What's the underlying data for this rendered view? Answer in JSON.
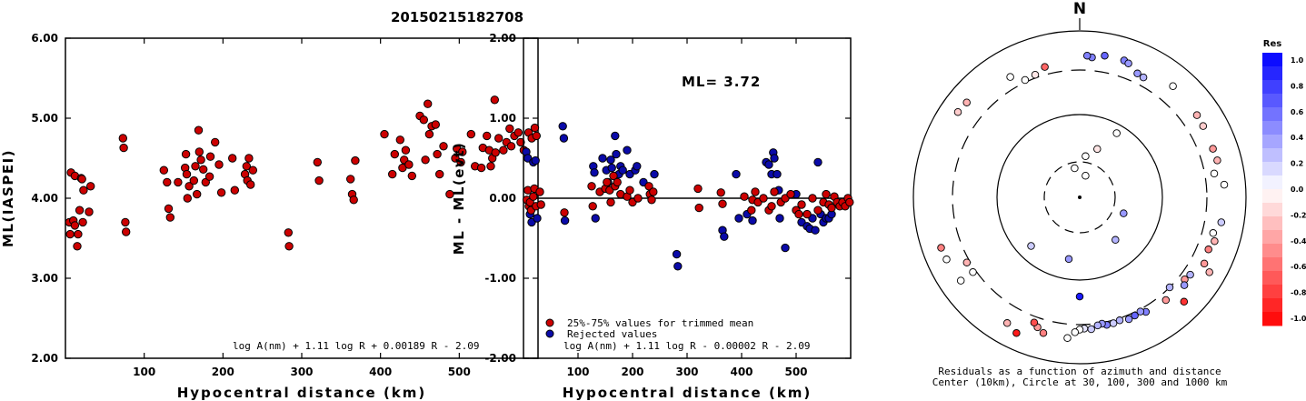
{
  "title": "20150215182708",
  "colors": {
    "red": "#cc0000",
    "blue": "#0a0aa8",
    "outline": "#000000"
  },
  "chart_data": [
    {
      "type": "scatter",
      "xlabel": "Hypocentral distance (km)",
      "ylabel": "ML(IASPEI)",
      "xlim": [
        0,
        600
      ],
      "ylim": [
        2.0,
        6.0
      ],
      "xticks": [
        "100",
        "200",
        "300",
        "400",
        "500"
      ],
      "yticks": [
        "2.00",
        "3.00",
        "4.00",
        "5.00",
        "6.00"
      ],
      "formula": "log A(nm) + 1.11 log R + 0.00189 R - 2.09",
      "points": [
        [
          5,
          3.7
        ],
        [
          6,
          3.55
        ],
        [
          7,
          4.32
        ],
        [
          10,
          3.72
        ],
        [
          12,
          3.66
        ],
        [
          12,
          4.28
        ],
        [
          15,
          3.4
        ],
        [
          16,
          3.55
        ],
        [
          18,
          3.85
        ],
        [
          20,
          4.25
        ],
        [
          21,
          4.24
        ],
        [
          22,
          3.7
        ],
        [
          23,
          4.1
        ],
        [
          30,
          3.83
        ],
        [
          32,
          4.15
        ],
        [
          73,
          4.75
        ],
        [
          74,
          4.63
        ],
        [
          76,
          3.7
        ],
        [
          77,
          3.58
        ],
        [
          125,
          4.35
        ],
        [
          129,
          4.2
        ],
        [
          131,
          3.87
        ],
        [
          133,
          3.76
        ],
        [
          143,
          4.2
        ],
        [
          152,
          4.38
        ],
        [
          153,
          4.55
        ],
        [
          154,
          4.3
        ],
        [
          155,
          4.0
        ],
        [
          157,
          4.15
        ],
        [
          163,
          4.22
        ],
        [
          165,
          4.4
        ],
        [
          167,
          4.05
        ],
        [
          169,
          4.85
        ],
        [
          170,
          4.58
        ],
        [
          172,
          4.48
        ],
        [
          175,
          4.36
        ],
        [
          178,
          4.2
        ],
        [
          183,
          4.27
        ],
        [
          184,
          4.52
        ],
        [
          190,
          4.7
        ],
        [
          195,
          4.42
        ],
        [
          198,
          4.07
        ],
        [
          212,
          4.5
        ],
        [
          215,
          4.1
        ],
        [
          228,
          4.3
        ],
        [
          230,
          4.4
        ],
        [
          231,
          4.22
        ],
        [
          233,
          4.5
        ],
        [
          235,
          4.17
        ],
        [
          238,
          4.35
        ],
        [
          283,
          3.57
        ],
        [
          284,
          3.4
        ],
        [
          320,
          4.45
        ],
        [
          322,
          4.22
        ],
        [
          362,
          4.24
        ],
        [
          364,
          4.05
        ],
        [
          366,
          3.98
        ],
        [
          368,
          4.47
        ],
        [
          405,
          4.8
        ],
        [
          415,
          4.3
        ],
        [
          418,
          4.55
        ],
        [
          425,
          4.73
        ],
        [
          428,
          4.38
        ],
        [
          430,
          4.48
        ],
        [
          432,
          4.6
        ],
        [
          436,
          4.42
        ],
        [
          440,
          4.28
        ],
        [
          450,
          5.03
        ],
        [
          455,
          4.98
        ],
        [
          457,
          4.48
        ],
        [
          460,
          5.18
        ],
        [
          462,
          4.8
        ],
        [
          465,
          4.9
        ],
        [
          470,
          4.92
        ],
        [
          472,
          4.55
        ],
        [
          475,
          4.3
        ],
        [
          480,
          4.65
        ],
        [
          488,
          4.05
        ],
        [
          495,
          4.5
        ],
        [
          497,
          4.62
        ],
        [
          502,
          4.45
        ],
        [
          504,
          4.58
        ],
        [
          515,
          4.8
        ],
        [
          520,
          4.4
        ],
        [
          528,
          4.38
        ],
        [
          530,
          4.63
        ],
        [
          535,
          4.78
        ],
        [
          538,
          4.6
        ],
        [
          540,
          4.4
        ],
        [
          542,
          4.5
        ],
        [
          545,
          5.23
        ],
        [
          546,
          4.57
        ],
        [
          550,
          4.75
        ],
        [
          556,
          4.6
        ],
        [
          560,
          4.7
        ],
        [
          564,
          4.87
        ],
        [
          566,
          4.65
        ],
        [
          570,
          4.78
        ],
        [
          575,
          4.82
        ],
        [
          578,
          4.7
        ],
        [
          582,
          4.6
        ],
        [
          588,
          4.82
        ],
        [
          592,
          4.75
        ],
        [
          596,
          4.88
        ],
        [
          598,
          4.78
        ]
      ]
    },
    {
      "type": "scatter",
      "xlabel": "Hypocentral distance (km)",
      "ylabel": "ML - ML(evt)",
      "xlim": [
        0,
        600
      ],
      "ylim": [
        -2.0,
        2.0
      ],
      "xticks": [
        "100",
        "200",
        "300",
        "400",
        "500"
      ],
      "yticks": [
        "-2.00",
        "-1.00",
        "0.00",
        "1.00",
        "2.00"
      ],
      "annotation": "ML= 3.72",
      "formula": "log A(nm) + 1.11 log R - 0.00002 R - 2.09",
      "legend": [
        "25%-75% values for trimmed mean",
        "Rejected values"
      ],
      "series": [
        {
          "name": "25%-75% values for trimmed mean",
          "points": [
            [
              6,
              -0.02
            ],
            [
              8,
              0.1
            ],
            [
              10,
              -0.1
            ],
            [
              12,
              -0.05
            ],
            [
              14,
              -0.15
            ],
            [
              18,
              0.02
            ],
            [
              20,
              0.12
            ],
            [
              23,
              -0.1
            ],
            [
              30,
              0.08
            ],
            [
              32,
              -0.08
            ],
            [
              75,
              -0.18
            ],
            [
              125,
              0.15
            ],
            [
              127,
              -0.1
            ],
            [
              140,
              0.08
            ],
            [
              150,
              0.12
            ],
            [
              153,
              0.2
            ],
            [
              158,
              0.1
            ],
            [
              160,
              -0.05
            ],
            [
              165,
              0.28
            ],
            [
              168,
              0.15
            ],
            [
              172,
              0.2
            ],
            [
              178,
              0.05
            ],
            [
              190,
              0.02
            ],
            [
              195,
              0.1
            ],
            [
              200,
              -0.05
            ],
            [
              210,
              0.0
            ],
            [
              230,
              0.15
            ],
            [
              232,
              0.05
            ],
            [
              235,
              -0.02
            ],
            [
              238,
              0.08
            ],
            [
              320,
              0.12
            ],
            [
              322,
              -0.12
            ],
            [
              362,
              0.07
            ],
            [
              365,
              -0.07
            ],
            [
              405,
              0.02
            ],
            [
              418,
              -0.15
            ],
            [
              420,
              -0.02
            ],
            [
              425,
              0.08
            ],
            [
              430,
              -0.05
            ],
            [
              440,
              0.0
            ],
            [
              450,
              -0.15
            ],
            [
              455,
              -0.1
            ],
            [
              460,
              0.08
            ],
            [
              472,
              -0.05
            ],
            [
              480,
              0.0
            ],
            [
              490,
              0.05
            ],
            [
              500,
              -0.15
            ],
            [
              505,
              -0.2
            ],
            [
              510,
              -0.08
            ],
            [
              520,
              -0.2
            ],
            [
              530,
              0.0
            ],
            [
              540,
              -0.15
            ],
            [
              550,
              -0.05
            ],
            [
              555,
              0.05
            ],
            [
              560,
              -0.08
            ],
            [
              565,
              -0.12
            ],
            [
              570,
              0.02
            ],
            [
              575,
              -0.05
            ],
            [
              580,
              -0.1
            ],
            [
              585,
              -0.05
            ],
            [
              590,
              -0.1
            ],
            [
              595,
              0.0
            ],
            [
              598,
              -0.05
            ]
          ]
        },
        {
          "name": "Rejected values",
          "points": [
            [
              5,
              0.58
            ],
            [
              8,
              0.5
            ],
            [
              12,
              -0.2
            ],
            [
              15,
              -0.3
            ],
            [
              18,
              0.45
            ],
            [
              22,
              0.47
            ],
            [
              25,
              -0.25
            ],
            [
              72,
              0.9
            ],
            [
              74,
              0.75
            ],
            [
              76,
              -0.28
            ],
            [
              128,
              0.4
            ],
            [
              130,
              0.32
            ],
            [
              132,
              -0.25
            ],
            [
              145,
              0.5
            ],
            [
              152,
              0.35
            ],
            [
              155,
              0.2
            ],
            [
              160,
              0.48
            ],
            [
              162,
              0.38
            ],
            [
              168,
              0.78
            ],
            [
              170,
              0.55
            ],
            [
              175,
              0.3
            ],
            [
              178,
              0.4
            ],
            [
              182,
              0.35
            ],
            [
              190,
              0.6
            ],
            [
              195,
              0.3
            ],
            [
              205,
              0.35
            ],
            [
              208,
              0.4
            ],
            [
              220,
              0.2
            ],
            [
              240,
              0.3
            ],
            [
              281,
              -0.7
            ],
            [
              283,
              -0.85
            ],
            [
              365,
              -0.4
            ],
            [
              368,
              -0.48
            ],
            [
              390,
              0.3
            ],
            [
              395,
              -0.25
            ],
            [
              410,
              -0.2
            ],
            [
              420,
              -0.28
            ],
            [
              445,
              0.45
            ],
            [
              450,
              0.42
            ],
            [
              455,
              0.3
            ],
            [
              458,
              0.57
            ],
            [
              460,
              0.5
            ],
            [
              465,
              0.3
            ],
            [
              468,
              0.1
            ],
            [
              470,
              -0.25
            ],
            [
              480,
              -0.62
            ],
            [
              500,
              0.05
            ],
            [
              510,
              -0.3
            ],
            [
              520,
              -0.35
            ],
            [
              525,
              -0.38
            ],
            [
              530,
              -0.25
            ],
            [
              535,
              -0.4
            ],
            [
              540,
              0.45
            ],
            [
              545,
              -0.2
            ],
            [
              550,
              -0.3
            ],
            [
              555,
              -0.25
            ],
            [
              560,
              -0.25
            ],
            [
              565,
              -0.2
            ]
          ]
        }
      ]
    },
    {
      "type": "scatter",
      "subtype": "polar",
      "north_label": "N",
      "caption_line1": "Residuals as a function of azimuth and distance",
      "caption_line2": "Center (10km), Circle at 30, 100, 300 and 1000 km",
      "colorbar_title": "Res",
      "colorbar_ticks": [
        "1.0",
        "0.8",
        "0.6",
        "0.4",
        "0.2",
        "0.0",
        "-0.2",
        "-0.4",
        "-0.6",
        "-0.8",
        "-1.0"
      ],
      "rings_km": [
        30,
        100,
        300,
        1000
      ],
      "points_az_dist_res": [
        [
          15,
          20,
          0.0
        ],
        [
          8,
          35,
          0.0
        ],
        [
          350,
          25,
          0.0
        ],
        [
          20,
          45,
          -0.1
        ],
        [
          30,
          80,
          0.0
        ],
        [
          110,
          40,
          0.4
        ],
        [
          140,
          50,
          0.3
        ],
        [
          190,
          60,
          0.4
        ],
        [
          225,
          70,
          0.2
        ],
        [
          180,
          150,
          0.9
        ],
        [
          5,
          450,
          0.5
        ],
        [
          3,
          470,
          0.5
        ],
        [
          10,
          500,
          0.6
        ],
        [
          18,
          500,
          0.5
        ],
        [
          20,
          480,
          0.4
        ],
        [
          25,
          400,
          0.4
        ],
        [
          28,
          390,
          0.3
        ],
        [
          345,
          380,
          -0.6
        ],
        [
          330,
          430,
          0.0
        ],
        [
          335,
          320,
          0.0
        ],
        [
          340,
          330,
          -0.1
        ],
        [
          310,
          560,
          -0.3
        ],
        [
          305,
          580,
          -0.2
        ],
        [
          40,
          520,
          0.0
        ],
        [
          55,
          490,
          -0.3
        ],
        [
          60,
          480,
          -0.2
        ],
        [
          70,
          470,
          -0.4
        ],
        [
          75,
          480,
          -0.3
        ],
        [
          80,
          400,
          0.0
        ],
        [
          85,
          520,
          0.0
        ],
        [
          100,
          500,
          0.2
        ],
        [
          105,
          420,
          0.0
        ],
        [
          108,
          470,
          -0.3
        ],
        [
          112,
          430,
          -0.5
        ],
        [
          118,
          460,
          -0.4
        ],
        [
          125,
          380,
          0.3
        ],
        [
          128,
          360,
          -0.4
        ],
        [
          130,
          400,
          0.4
        ],
        [
          135,
          300,
          0.3
        ],
        [
          140,
          370,
          -0.4
        ],
        [
          150,
          350,
          0.5
        ],
        [
          152,
          320,
          0.4
        ],
        [
          155,
          330,
          0.6
        ],
        [
          158,
          340,
          0.4
        ],
        [
          162,
          320,
          0.3
        ],
        [
          165,
          330,
          0.2
        ],
        [
          168,
          330,
          0.5
        ],
        [
          170,
          310,
          0.4
        ],
        [
          172,
          320,
          0.3
        ],
        [
          175,
          350,
          0.2
        ],
        [
          178,
          340,
          0.1
        ],
        [
          180,
          350,
          0.0
        ],
        [
          182,
          380,
          0.0
        ],
        [
          185,
          460,
          0.0
        ],
        [
          195,
          450,
          -0.5
        ],
        [
          198,
          400,
          -0.4
        ],
        [
          200,
          360,
          -0.7
        ],
        [
          205,
          600,
          -0.9
        ],
        [
          210,
          520,
          -0.3
        ],
        [
          235,
          330,
          0.0
        ],
        [
          240,
          330,
          -0.3
        ],
        [
          245,
          550,
          0.0
        ],
        [
          250,
          560,
          -0.5
        ],
        [
          235,
          520,
          0.0
        ],
        [
          120,
          600,
          -0.3
        ],
        [
          135,
          560,
          -0.8
        ]
      ]
    }
  ]
}
